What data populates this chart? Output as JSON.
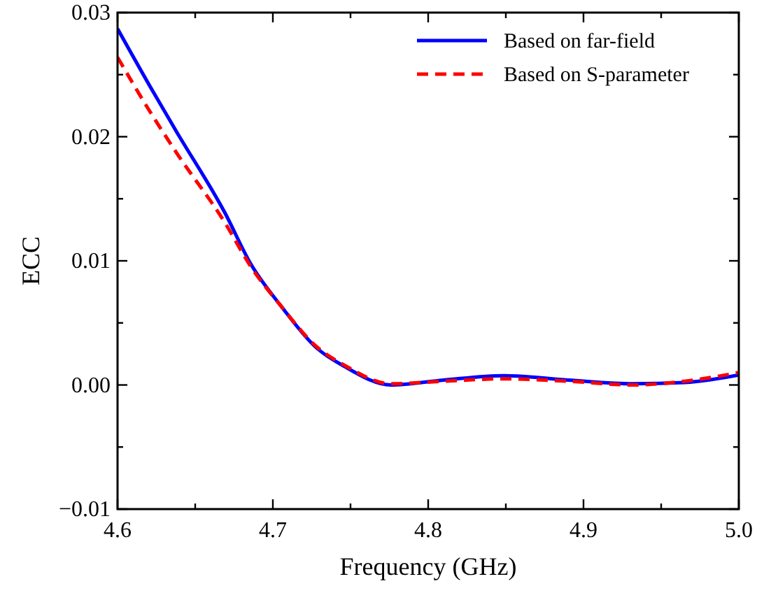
{
  "chart_data": {
    "type": "line",
    "xlabel": "Frequency (GHz)",
    "ylabel": "ECC",
    "xlim": [
      4.6,
      5.0
    ],
    "ylim": [
      -0.01,
      0.03
    ],
    "xticks": [
      {
        "value": 4.6,
        "label": "4.6"
      },
      {
        "value": 4.65,
        "label": null
      },
      {
        "value": 4.7,
        "label": "4.7"
      },
      {
        "value": 4.75,
        "label": null
      },
      {
        "value": 4.8,
        "label": "4.8"
      },
      {
        "value": 4.85,
        "label": null
      },
      {
        "value": 4.9,
        "label": "4.9"
      },
      {
        "value": 4.95,
        "label": null
      },
      {
        "value": 5.0,
        "label": "5.0"
      }
    ],
    "yticks": [
      {
        "value": -0.01,
        "label": "−0.01"
      },
      {
        "value": -0.005,
        "label": null
      },
      {
        "value": 0,
        "label": "0.00"
      },
      {
        "value": 0.005,
        "label": null
      },
      {
        "value": 0.01,
        "label": "0.01"
      },
      {
        "value": 0.015,
        "label": null
      },
      {
        "value": 0.02,
        "label": "0.02"
      },
      {
        "value": 0.025,
        "label": null
      },
      {
        "value": 0.03,
        "label": "0.03"
      }
    ],
    "grid": false,
    "legend": "top right",
    "series": [
      {
        "name": "Based on far-field",
        "color": "#0000ff",
        "line_style": "solid",
        "x": [
          4.6,
          4.623,
          4.638,
          4.669,
          4.686,
          4.705,
          4.728,
          4.746,
          4.776,
          4.81,
          4.849,
          4.89,
          4.932,
          4.965,
          5.0
        ],
        "values": [
          0.0287,
          0.0236,
          0.0204,
          0.0139,
          0.0097,
          0.0064,
          0.003,
          0.0015,
          0.0,
          0.0004,
          0.00075,
          0.0004,
          0.0001,
          0.0002,
          0.0008
        ]
      },
      {
        "name": "Based on S-parameter",
        "color": "#ff0000",
        "line_style": "dashed",
        "x": [
          4.6,
          4.62,
          4.638,
          4.669,
          4.686,
          4.705,
          4.728,
          4.746,
          4.776,
          4.81,
          4.849,
          4.89,
          4.932,
          4.965,
          5.0
        ],
        "values": [
          0.0264,
          0.0222,
          0.0187,
          0.0131,
          0.0095,
          0.0064,
          0.0031,
          0.0016,
          0.0001,
          0.0003,
          0.0005,
          0.0003,
          0.0,
          0.0003,
          0.001
        ]
      }
    ]
  }
}
